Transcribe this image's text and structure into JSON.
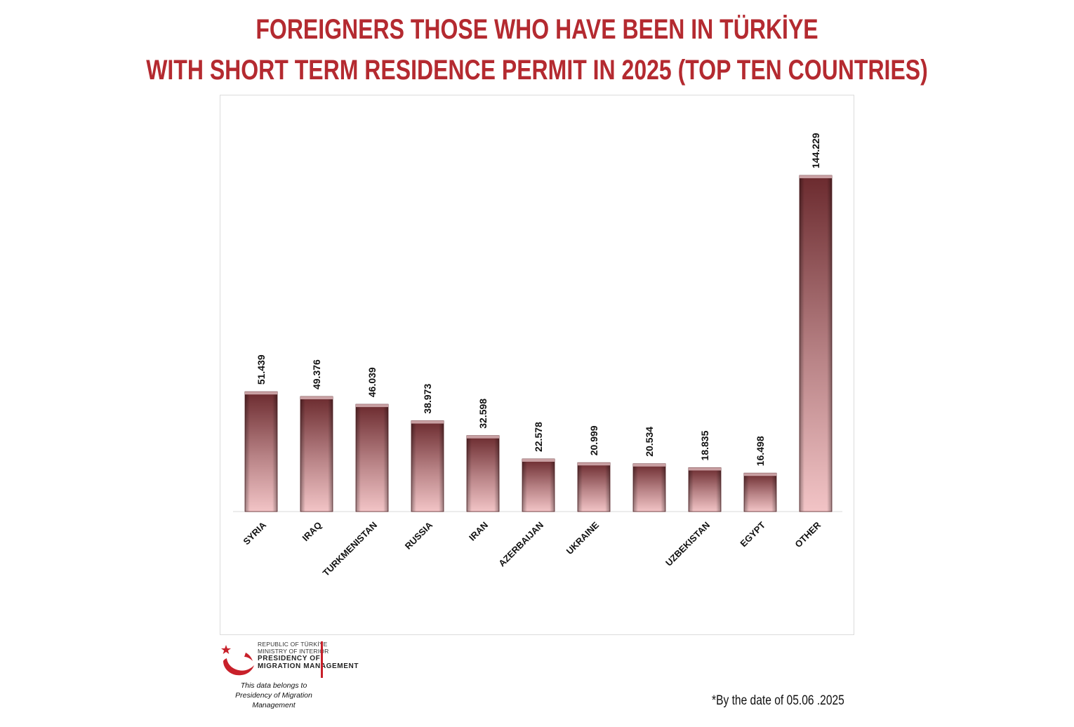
{
  "title": {
    "line1": "FOREIGNERS THOSE WHO HAVE BEEN IN TÜRKİYE",
    "line2": "WITH SHORT TERM RESIDENCE PERMIT IN 2025 (TOP TEN COUNTRIES)"
  },
  "chart_data": {
    "type": "bar",
    "title": "FOREIGNERS THOSE WHO HAVE BEEN IN TÜRKİYE WITH SHORT TERM RESIDENCE PERMIT IN 2025 (TOP TEN COUNTRIES)",
    "categories": [
      "SYRIA",
      "IRAQ",
      "TURKMENISTAN",
      "RUSSIA",
      "IRAN",
      "AZERBAIJAN",
      "UKRAINE",
      "",
      "UZBEKISTAN",
      "EGYPT",
      "OTHER"
    ],
    "values": [
      51439,
      49376,
      46039,
      38973,
      32598,
      22578,
      20999,
      20534,
      18835,
      16498,
      144229
    ],
    "value_labels": [
      "51.439",
      "49.376",
      "46.039",
      "38.973",
      "32.598",
      "22.578",
      "20.999",
      "20.534",
      "18.835",
      "16.498",
      "144.229"
    ],
    "xlabel": "",
    "ylabel": "",
    "ylim": [
      0,
      144229
    ],
    "grid": false,
    "legend": "none",
    "colors": {
      "bar_top": "#6b2a2e",
      "bar_bottom": "#f2c4c6",
      "title": "#b42a30"
    }
  },
  "logo": {
    "lines": [
      "REPUBLIC OF TÜRKİYE",
      "MINISTRY OF INTERIOR",
      "PRESIDENCY OF",
      "MIGRATION MANAGEMENT"
    ],
    "note_line1": "This data belongs to",
    "note_line2": "Presidency of Migration Management"
  },
  "footnote": "*By the date of  05.06 .2025"
}
